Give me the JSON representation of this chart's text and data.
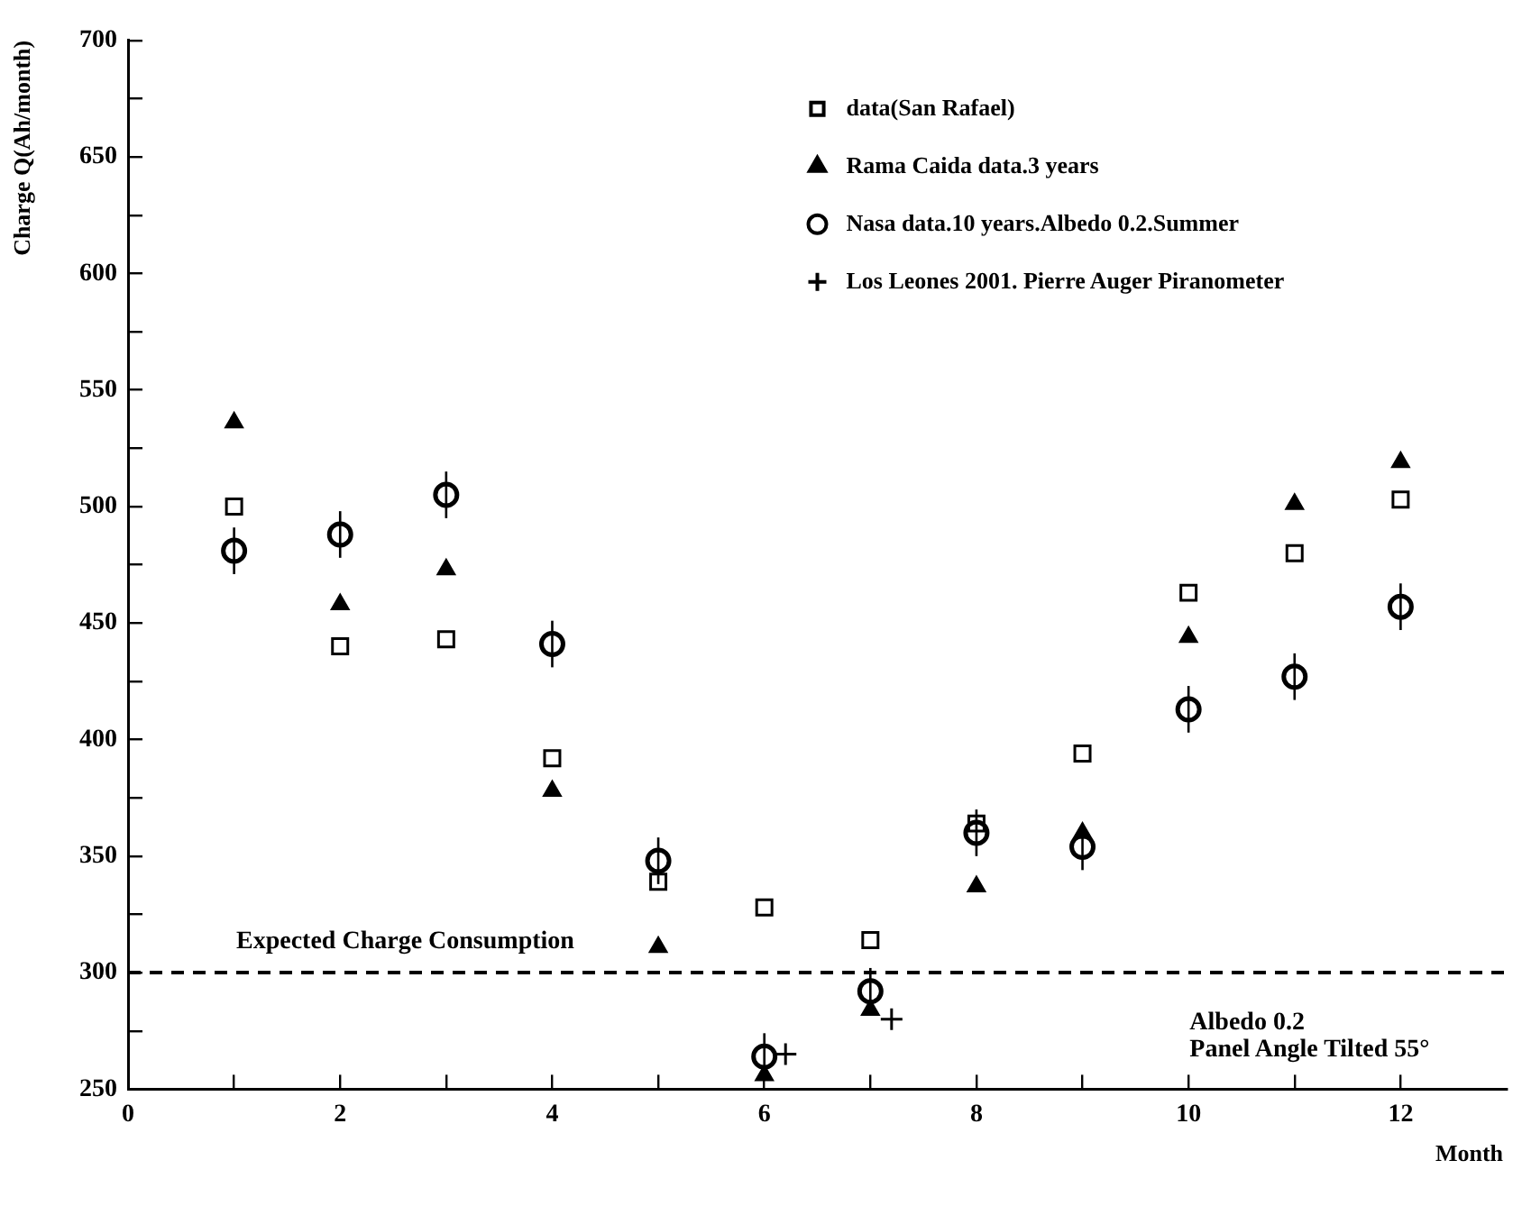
{
  "chart_data": {
    "type": "scatter",
    "ylabel": "Charge Q(Ah/month)",
    "xlabel": "Month",
    "xlim": [
      0,
      13
    ],
    "ylim": [
      250,
      700
    ],
    "xticks": [
      0,
      {
        "value": 1,
        "label": null
      },
      2,
      {
        "value": 3,
        "label": null
      },
      4,
      {
        "value": 5,
        "label": null
      },
      6,
      {
        "value": 7,
        "label": null
      },
      8,
      {
        "value": 9,
        "label": null
      },
      10,
      {
        "value": 11,
        "label": null
      },
      12
    ],
    "yticks": [
      250,
      {
        "value": 275,
        "label": null
      },
      300,
      {
        "value": 325,
        "label": null
      },
      350,
      {
        "value": 375,
        "label": null
      },
      400,
      {
        "value": 425,
        "label": null
      },
      450,
      {
        "value": 475,
        "label": null
      },
      500,
      {
        "value": 525,
        "label": null
      },
      550,
      {
        "value": 575,
        "label": null
      },
      600,
      {
        "value": 625,
        "label": null
      },
      650,
      {
        "value": 675,
        "label": null
      },
      700
    ],
    "grid": false,
    "legend": "top right",
    "x": [
      1,
      2,
      3,
      4,
      5,
      6,
      7,
      8,
      9,
      10,
      11,
      12
    ],
    "series": [
      {
        "name": "data(San Rafael)",
        "color": "#000000",
        "marker": "square",
        "values": [
          500,
          440,
          443,
          392,
          339,
          328,
          314,
          364,
          394,
          463,
          480,
          503
        ]
      },
      {
        "name": "Rama Caida data.3 years",
        "color": "#000000",
        "marker": "triangle",
        "values": [
          536,
          458,
          473,
          378,
          311,
          256,
          284,
          337,
          360,
          444,
          501,
          519
        ]
      },
      {
        "name": "Nasa data.10 years.Albedo 0.2.Summer",
        "color": "#000000",
        "marker": "circle",
        "values": [
          481,
          488,
          505,
          441,
          348,
          264,
          292,
          360,
          354,
          413,
          427,
          457
        ],
        "errors": [
          10,
          10,
          10,
          10,
          10,
          10,
          10,
          10,
          10,
          10,
          10,
          10
        ]
      },
      {
        "name": "Los Leones 2001. Pierre Auger Piranometer",
        "color": "#000000",
        "marker": "cross",
        "x": [
          6.2,
          7.2
        ],
        "values": [
          265,
          280
        ]
      }
    ],
    "ref_lines": [
      {
        "axis": "y",
        "value": 300,
        "label": "Expected Charge Consumption",
        "line_style": "dashed",
        "color": "#000000"
      }
    ],
    "annotations": [
      "Albedo 0.2",
      "Panel Angle Tilted 55°"
    ]
  }
}
